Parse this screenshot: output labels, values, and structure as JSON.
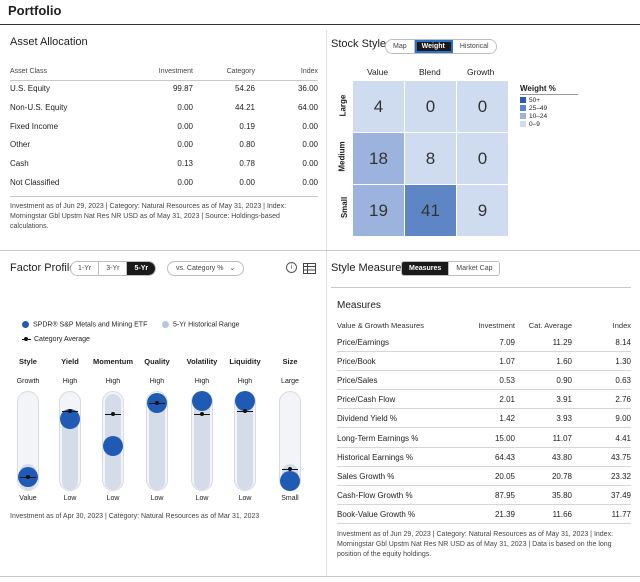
{
  "page_title": "Portfolio",
  "asset_allocation": {
    "title": "Asset Allocation",
    "headers": [
      "Asset Class",
      "Investment",
      "Category",
      "Index"
    ],
    "rows": [
      {
        "label": "U.S. Equity",
        "investment": "99.87",
        "category": "54.26",
        "index": "36.00"
      },
      {
        "label": "Non-U.S. Equity",
        "investment": "0.00",
        "category": "44.21",
        "index": "64.00"
      },
      {
        "label": "Fixed Income",
        "investment": "0.00",
        "category": "0.19",
        "index": "0.00"
      },
      {
        "label": "Other",
        "investment": "0.00",
        "category": "0.80",
        "index": "0.00"
      },
      {
        "label": "Cash",
        "investment": "0.13",
        "category": "0.78",
        "index": "0.00"
      },
      {
        "label": "Not Classified",
        "investment": "0.00",
        "category": "0.00",
        "index": "0.00"
      }
    ],
    "note": "Investment as of Jun 29, 2023 | Category: Natural Resources as of May 31, 2023 | Index: Morningstar Gbl Upstm Nat Res NR USD as of May 31, 2023 | Source: Holdings-based calculations."
  },
  "stock_style": {
    "title": "Stock Style",
    "tabs": [
      "Map",
      "Weight",
      "Historical"
    ],
    "active_tab": "Weight",
    "columns": [
      "Value",
      "Blend",
      "Growth"
    ],
    "rows": [
      "Large",
      "Medium",
      "Small"
    ],
    "cells": [
      [
        "4",
        "0",
        "0"
      ],
      [
        "18",
        "8",
        "0"
      ],
      [
        "19",
        "41",
        "9"
      ]
    ],
    "legend_title": "Weight %",
    "legend": [
      {
        "label": "50+",
        "color": "#2a5ca8"
      },
      {
        "label": "25–49",
        "color": "#5f86c4"
      },
      {
        "label": "10–24",
        "color": "#9cb4dd"
      },
      {
        "label": "0–9",
        "color": "#cfdbef"
      }
    ]
  },
  "factor_profile": {
    "title": "Factor Profile",
    "tabs": [
      "1-Yr",
      "3-Yr",
      "5-Yr"
    ],
    "active_tab": "5-Yr",
    "dropdown": "vs. Category %",
    "info_icon": "info-icon",
    "table_icon": "table-icon",
    "legend": [
      {
        "label": "SPDR® S&P Metals and Mining ETF",
        "kind": "dot",
        "color": "#1f5bb5"
      },
      {
        "label": "5-Yr Historical Range",
        "kind": "dot",
        "color": "#b8c6de"
      },
      {
        "label": "Category Average",
        "kind": "line",
        "color": "#111111"
      }
    ],
    "factors": [
      {
        "name": "Style",
        "top": "Growth",
        "bottom": "Value",
        "value": 0.14,
        "avg": 0.14,
        "range": [
          0.0,
          0.3
        ]
      },
      {
        "name": "Yield",
        "top": "High",
        "bottom": "Low",
        "value": 0.72,
        "avg": 0.8,
        "range": [
          0.0,
          0.85
        ]
      },
      {
        "name": "Momentum",
        "top": "High",
        "bottom": "Low",
        "value": 0.45,
        "avg": 0.77,
        "range": [
          0.0,
          1.0
        ]
      },
      {
        "name": "Quality",
        "top": "High",
        "bottom": "Low",
        "value": 0.88,
        "avg": 0.88,
        "range": [
          0.0,
          1.0
        ]
      },
      {
        "name": "Volatility",
        "top": "High",
        "bottom": "Low",
        "value": 0.9,
        "avg": 0.77,
        "range": [
          0.0,
          1.0
        ]
      },
      {
        "name": "Liquidity",
        "top": "High",
        "bottom": "Low",
        "value": 0.94,
        "avg": 0.8,
        "range": [
          0.0,
          1.0
        ]
      },
      {
        "name": "Size",
        "top": "Large",
        "bottom": "Small",
        "value": 0.05,
        "avg": 0.22,
        "range": [
          0.0,
          0.3
        ]
      }
    ],
    "note": "Investment as of Apr 30, 2023 | Category: Natural Resources as of Mar 31, 2023"
  },
  "style_measures": {
    "title": "Style Measures",
    "tabs": [
      "Measures",
      "Market Cap"
    ],
    "active_tab": "Measures",
    "subtitle": "Measures",
    "headers": [
      "Value & Growth Measures",
      "Investment",
      "Cat. Average",
      "Index"
    ],
    "rows": [
      {
        "label": "Price/Earnings",
        "investment": "7.09",
        "category": "11.29",
        "index": "8.14"
      },
      {
        "label": "Price/Book",
        "investment": "1.07",
        "category": "1.60",
        "index": "1.30"
      },
      {
        "label": "Price/Sales",
        "investment": "0.53",
        "category": "0.90",
        "index": "0.63"
      },
      {
        "label": "Price/Cash Flow",
        "investment": "2.01",
        "category": "3.91",
        "index": "2.76"
      },
      {
        "label": "Dividend Yield %",
        "investment": "1.42",
        "category": "3.93",
        "index": "9.00"
      },
      {
        "label": "Long-Term Earnings %",
        "investment": "15.00",
        "category": "11.07",
        "index": "4.41"
      },
      {
        "label": "Historical Earnings %",
        "investment": "64.43",
        "category": "43.80",
        "index": "43.75"
      },
      {
        "label": "Sales Growth %",
        "investment": "20.05",
        "category": "20.78",
        "index": "23.32"
      },
      {
        "label": "Cash-Flow Growth %",
        "investment": "87.95",
        "category": "35.80",
        "index": "37.49"
      },
      {
        "label": "Book-Value Growth %",
        "investment": "21.39",
        "category": "11.66",
        "index": "11.77"
      }
    ],
    "note": "Investment as of Jun 29, 2023 | Category: Natural Resources as of May 31, 2023 | Index: Morningstar Gbl Upstm Nat Res NR USD as of May 31, 2023 | Data is based on the long position of the equity holdings."
  }
}
